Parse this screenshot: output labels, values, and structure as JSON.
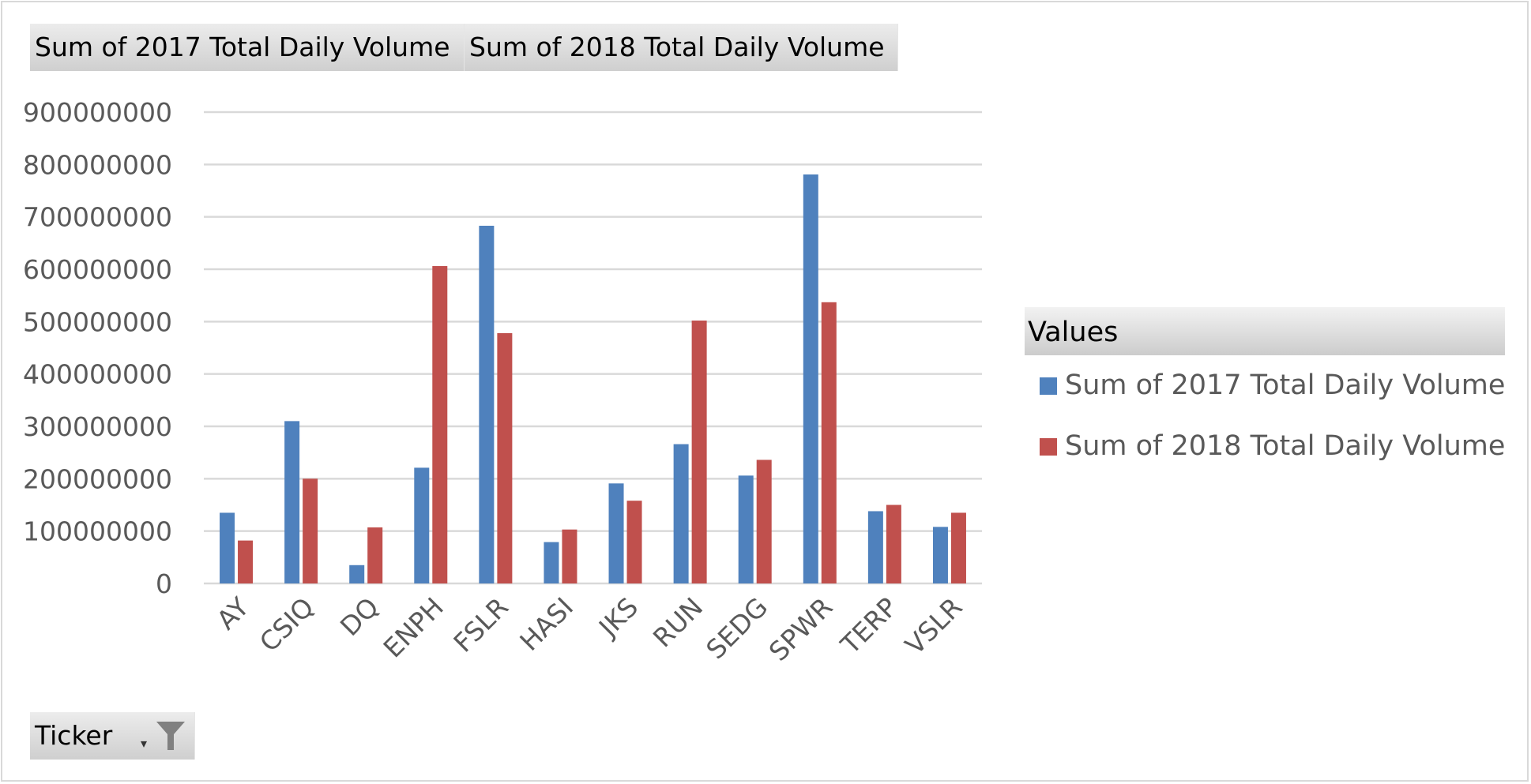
{
  "pivot_fields": {
    "value_2017": "Sum of 2017 Total Daily Volume",
    "value_2018": "Sum of 2018 Total Daily Volume",
    "axis_field": "Ticker"
  },
  "legend": {
    "title": "Values",
    "items": [
      "Sum of 2017 Total Daily Volume",
      "Sum of 2018 Total Daily Volume"
    ]
  },
  "colors": {
    "series_2017": "#4f81bd",
    "series_2018": "#c0504d",
    "grid": "#d9d9d9",
    "tick_text": "#595959"
  },
  "chart_data": {
    "type": "bar",
    "categories": [
      "AY",
      "CSIQ",
      "DQ",
      "ENPH",
      "FSLR",
      "HASI",
      "JKS",
      "RUN",
      "SEDG",
      "SPWR",
      "TERP",
      "VSLR"
    ],
    "series": [
      {
        "name": "Sum of 2017 Total Daily Volume",
        "values": [
          135000000,
          310000000,
          35000000,
          221000000,
          683000000,
          79000000,
          191000000,
          266000000,
          206000000,
          781000000,
          138000000,
          108000000
        ]
      },
      {
        "name": "Sum of 2018 Total Daily Volume",
        "values": [
          82000000,
          200000000,
          107000000,
          606000000,
          478000000,
          103000000,
          158000000,
          502000000,
          236000000,
          537000000,
          150000000,
          135000000
        ]
      }
    ],
    "y_ticks": [
      "0",
      "100000000",
      "200000000",
      "300000000",
      "400000000",
      "500000000",
      "600000000",
      "700000000",
      "800000000",
      "900000000"
    ],
    "ylim": [
      0,
      900000000
    ],
    "grid": true,
    "legend_position": "right"
  }
}
